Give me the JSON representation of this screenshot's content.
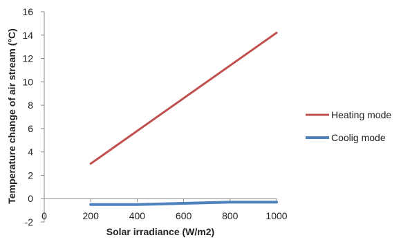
{
  "chart_data": {
    "type": "line",
    "xlabel": "Solar irradiance (W/m2)",
    "ylabel": "Temperature change of air stream (°C)",
    "xlim": [
      0,
      1000
    ],
    "ylim": [
      -2,
      16
    ],
    "xticks": [
      0,
      200,
      400,
      600,
      800,
      1000
    ],
    "yticks": [
      -2,
      0,
      2,
      4,
      6,
      8,
      10,
      12,
      14,
      16
    ],
    "grid": false,
    "legend_position": "right",
    "series": [
      {
        "name": "Heating mode",
        "color": "#C0504D",
        "x": [
          200,
          1000
        ],
        "y": [
          3.0,
          14.2
        ]
      },
      {
        "name": "Coolig mode",
        "color": "#4F81BD",
        "x": [
          200,
          400,
          600,
          800,
          1000
        ],
        "y": [
          -0.5,
          -0.5,
          -0.4,
          -0.3,
          -0.3
        ]
      }
    ]
  }
}
